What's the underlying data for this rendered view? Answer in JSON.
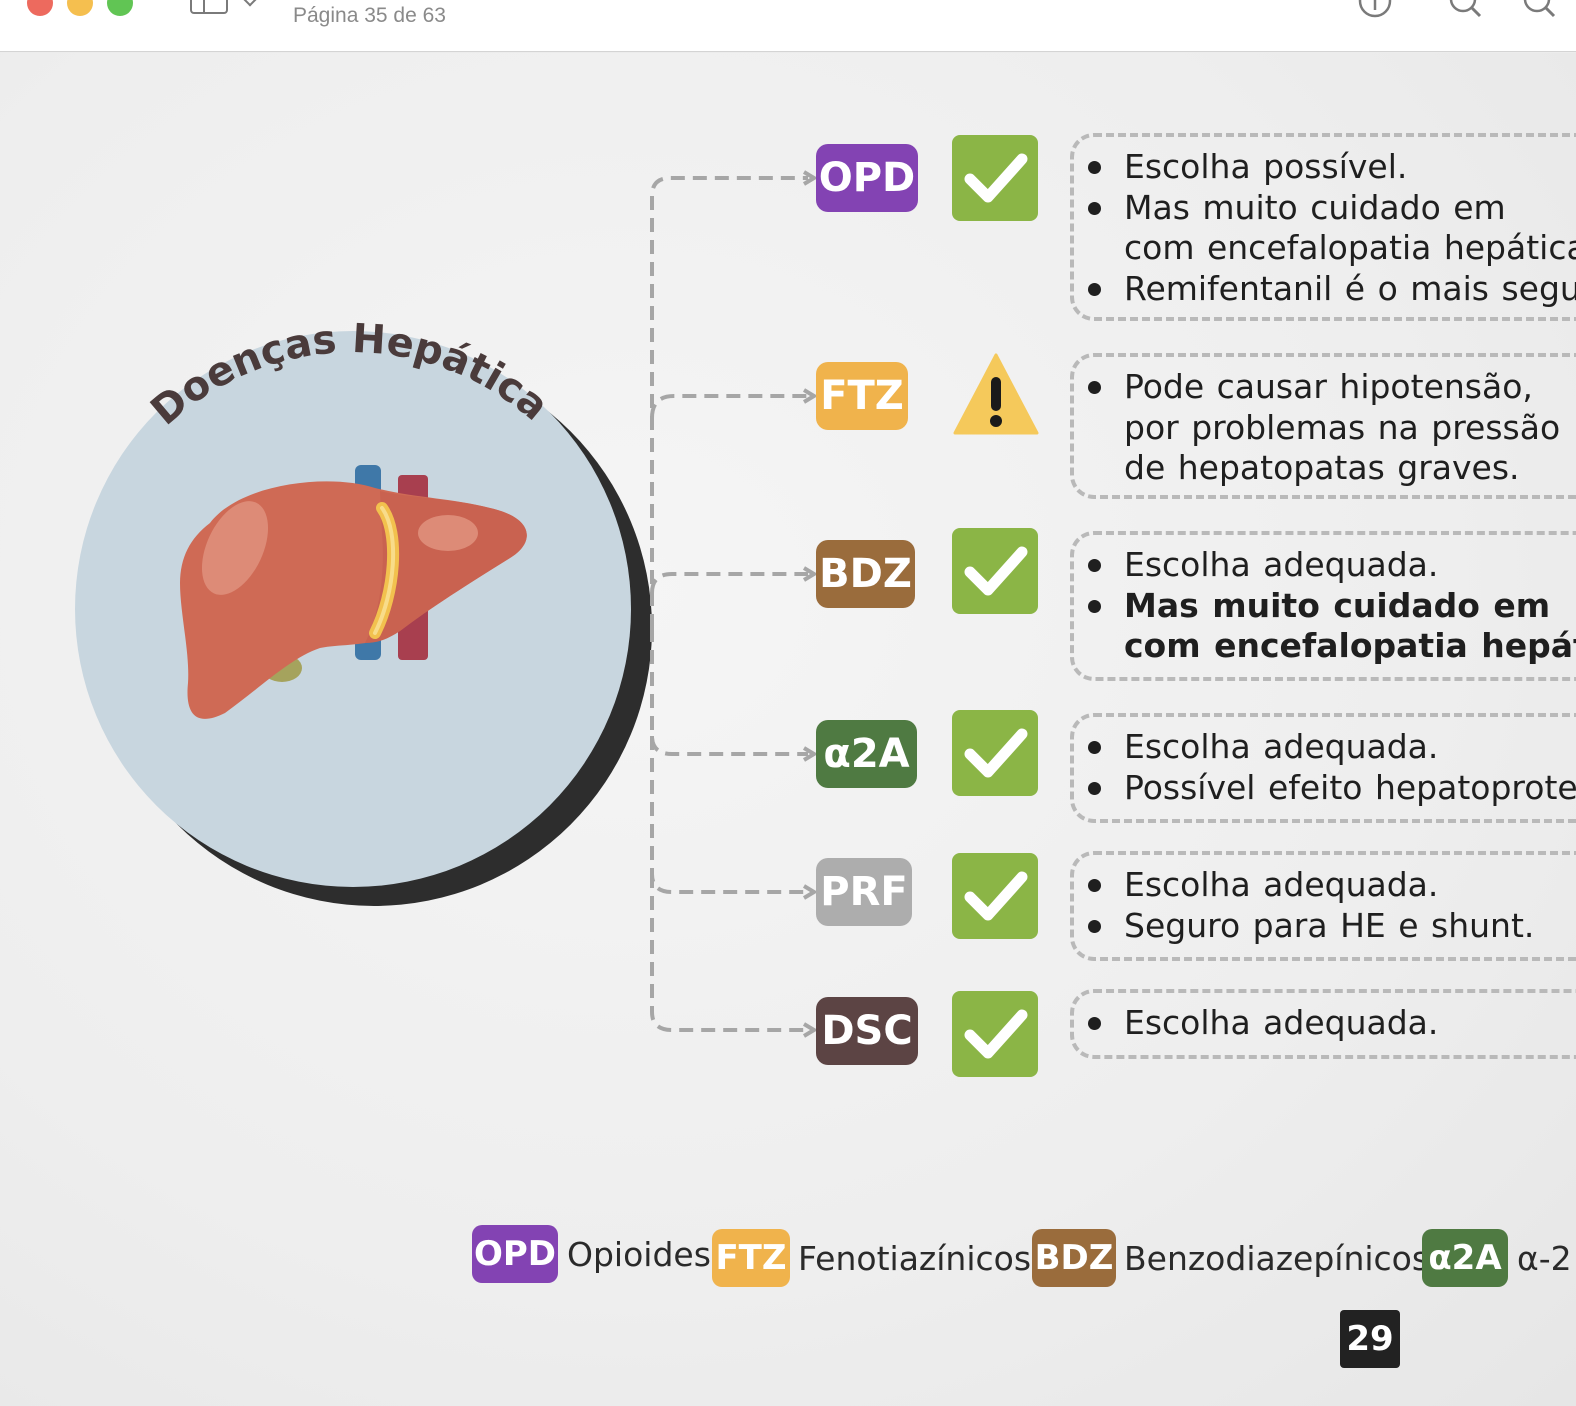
{
  "window": {
    "page_indicator": "Página 35 de 63"
  },
  "toolbar_icons": [
    "info-icon",
    "search-icon",
    "zoom-icon"
  ],
  "diagram": {
    "title": "Doenças Hepáticas",
    "rows": [
      {
        "code": "OPD",
        "color": "#8343b3",
        "status": "check",
        "notes": [
          {
            "bullet": true,
            "text": "Escolha possível."
          },
          {
            "bullet": true,
            "text": "Mas  muito  cuidado  em"
          },
          {
            "bullet": false,
            "text": "com encefalopatia hepática"
          },
          {
            "bullet": true,
            "text": "Remifentanil é o mais segu"
          }
        ]
      },
      {
        "code": "FTZ",
        "color": "#f0b34c",
        "status": "warning",
        "notes": [
          {
            "bullet": true,
            "text": "Pode  causar  hipotensão,"
          },
          {
            "bullet": false,
            "text": "por  problemas  na  pressão"
          },
          {
            "bullet": false,
            "text": "de hepatopatas graves."
          }
        ]
      },
      {
        "code": "BDZ",
        "color": "#9a6c3c",
        "status": "check",
        "notes": [
          {
            "bullet": true,
            "text": "Escolha adequada."
          },
          {
            "bullet": true,
            "text": "Mas  muito  cuidado  em",
            "bold": true
          },
          {
            "bullet": false,
            "text": "com encefalopatia hepátic",
            "bold": true
          }
        ]
      },
      {
        "code": "α2A",
        "color": "#4f7a42",
        "status": "check",
        "notes": [
          {
            "bullet": true,
            "text": "Escolha adequada."
          },
          {
            "bullet": true,
            "text": "Possível efeito hepatoprote"
          }
        ]
      },
      {
        "code": "PRF",
        "color": "#adadad",
        "status": "check",
        "notes": [
          {
            "bullet": true,
            "text": "Escolha adequada."
          },
          {
            "bullet": true,
            "text": "Seguro para HE e shunt."
          }
        ]
      },
      {
        "code": "DSC",
        "color": "#5c4444",
        "status": "check",
        "notes": [
          {
            "bullet": true,
            "text": "Escolha adequada."
          }
        ]
      }
    ]
  },
  "legend": [
    {
      "code": "OPD",
      "label": "Opioides",
      "color": "#8343b3"
    },
    {
      "code": "FTZ",
      "label": "Fenotiazínicos",
      "color": "#f0b34c"
    },
    {
      "code": "BDZ",
      "label": "Benzodiazepínicos",
      "color": "#9a6c3c"
    },
    {
      "code": "α2A",
      "label": "α-2",
      "color": "#4f7a42"
    }
  ],
  "page_number": "29",
  "colors": {
    "check_green": "#8bb546",
    "warning_yellow": "#f5c95b",
    "circle_fill": "#c8d6df",
    "liver": "#cf6a55"
  }
}
